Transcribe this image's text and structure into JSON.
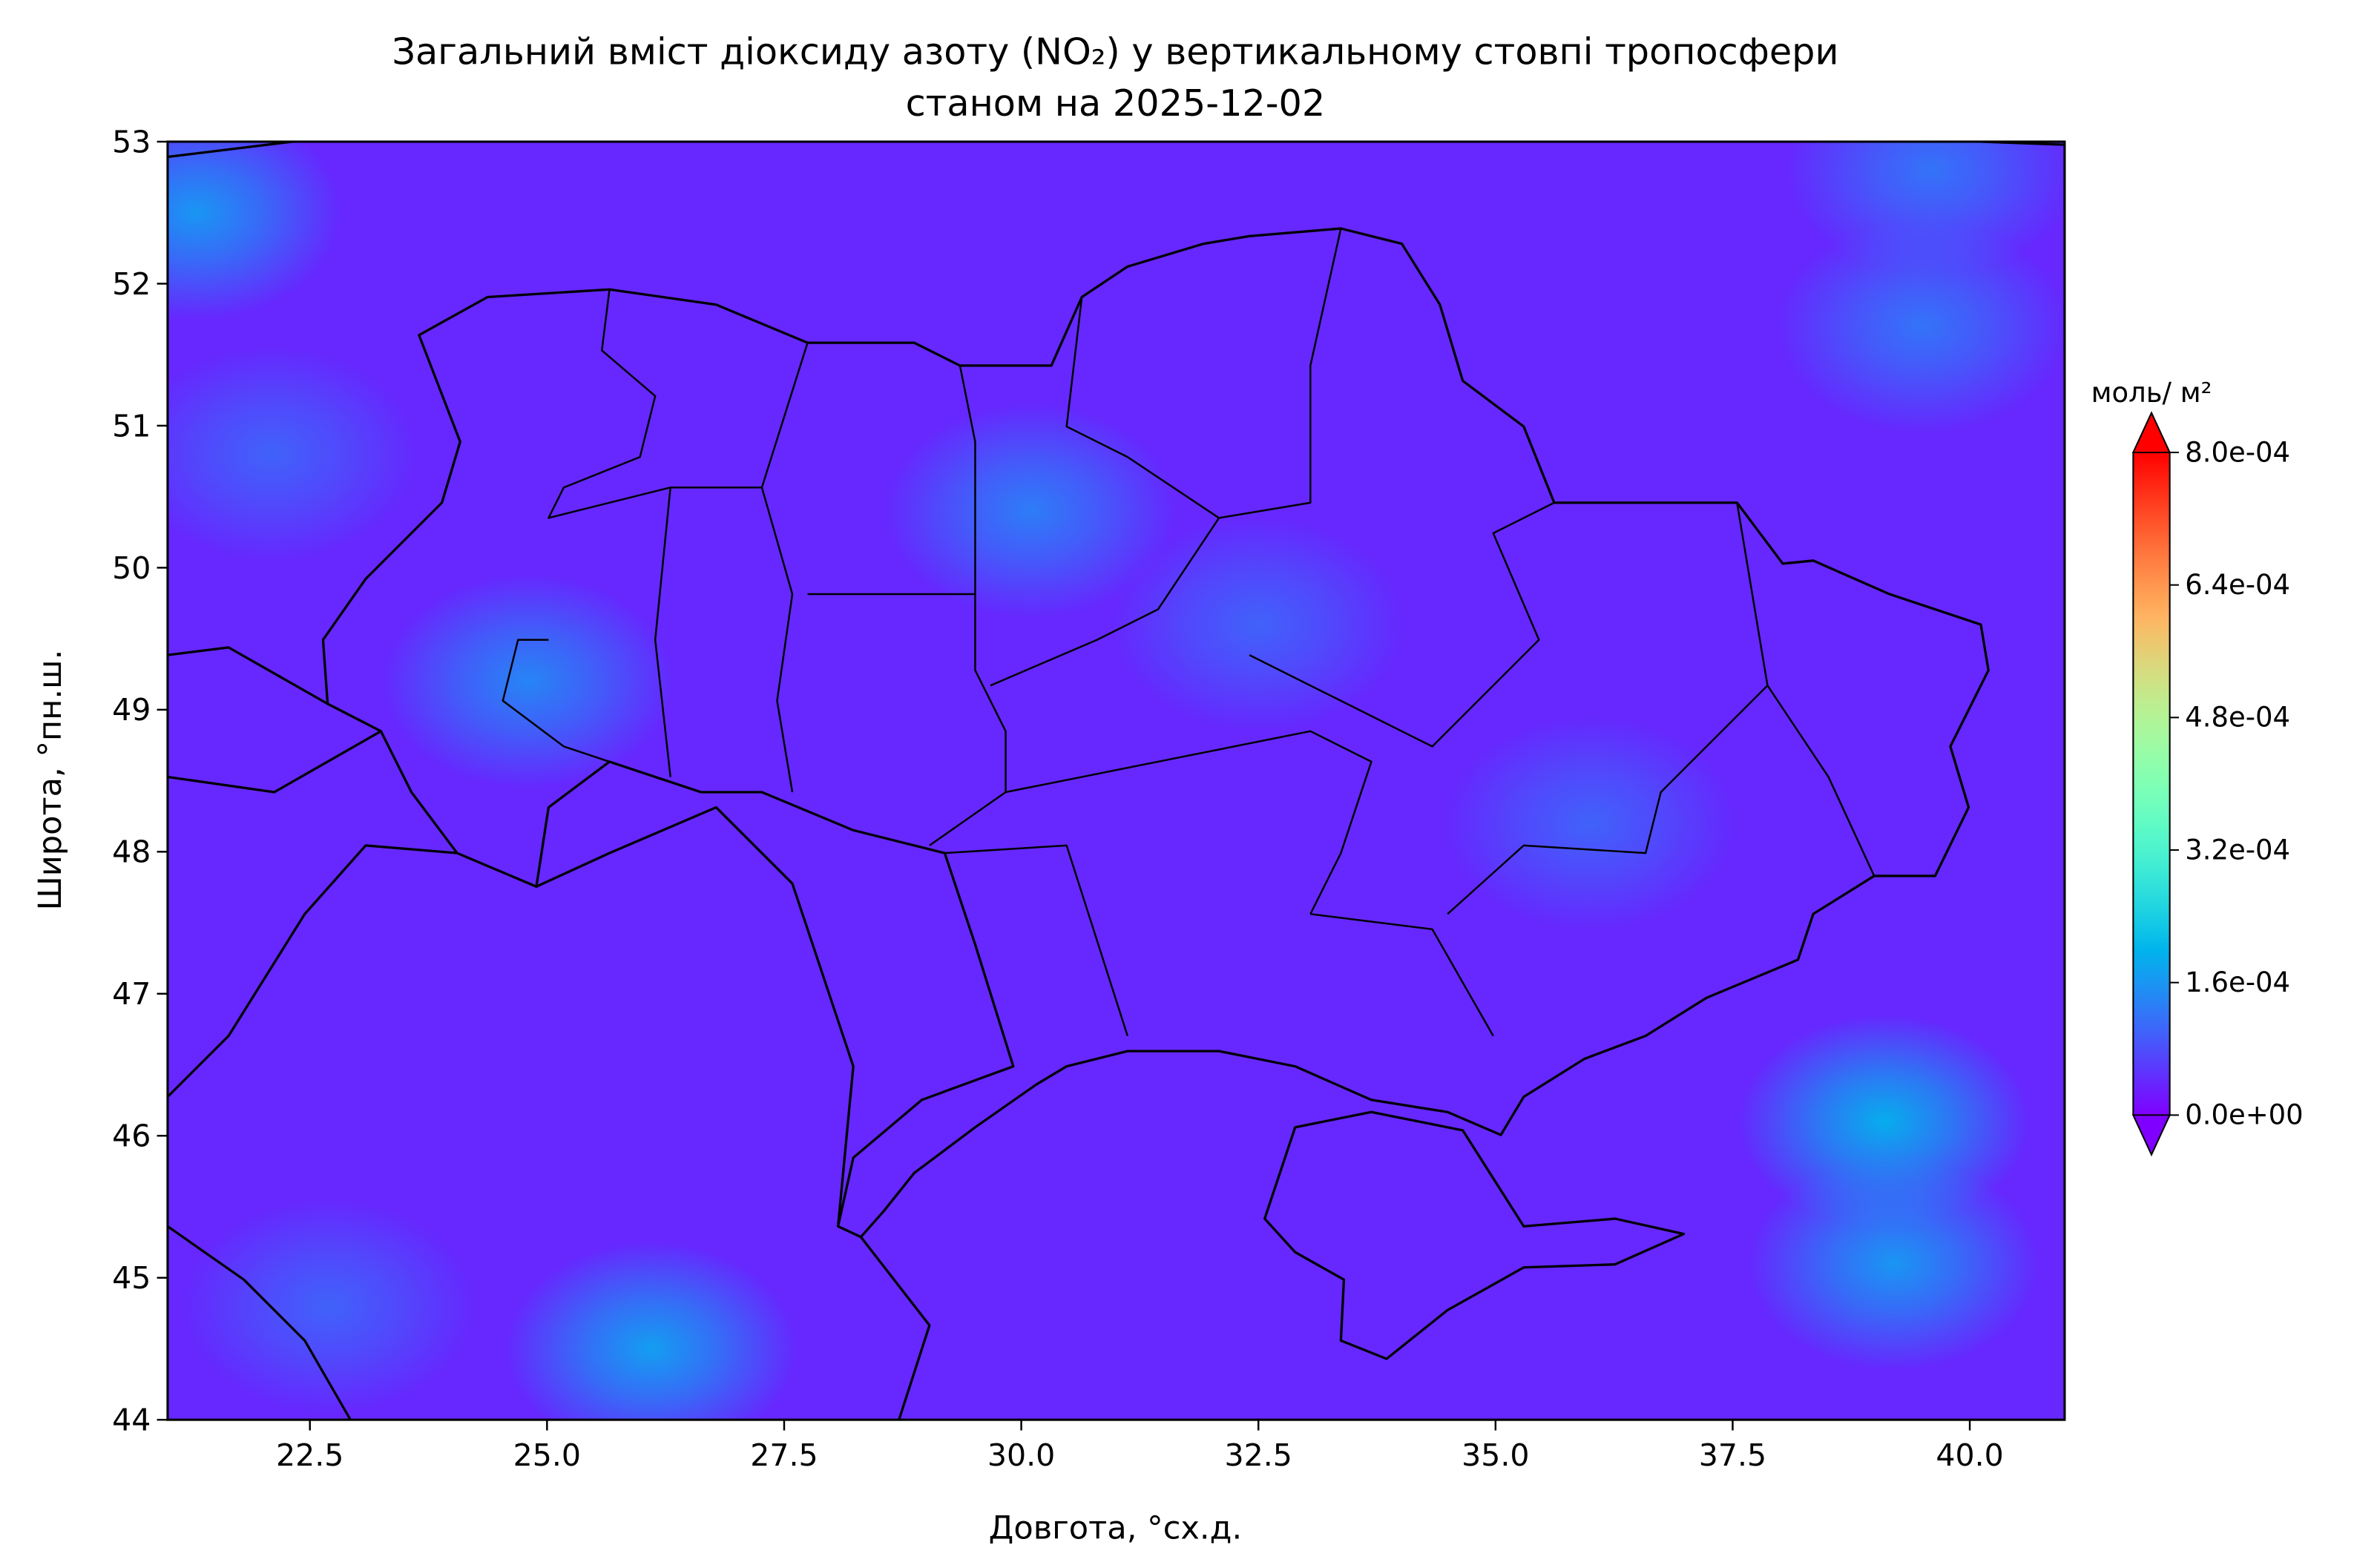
{
  "chart_data": {
    "type": "contour-map",
    "title": [
      "Загальний вміст діоксиду азоту (NO₂) у вертикальному стовпі тропосфери",
      "станом на 2025-12-02"
    ],
    "xlabel": "Довгота, °сх.д.",
    "ylabel": "Широта, °пн.ш.",
    "xlim": [
      21,
      41
    ],
    "ylim": [
      44,
      53
    ],
    "xticks": [
      22.5,
      {
        "value": 25,
        "label": "25.0"
      },
      27.5,
      {
        "value": 30,
        "label": "30.0"
      },
      32.5,
      {
        "value": 35,
        "label": "35.0"
      },
      37.5,
      {
        "value": 40,
        "label": "40.0"
      }
    ],
    "yticks": [
      44,
      45,
      46,
      47,
      48,
      49,
      50,
      51,
      52,
      53
    ],
    "colormap": "rainbow",
    "colorbar_label": "моль/ м²",
    "clim": [
      0,
      0.0008
    ],
    "cticks": [
      {
        "value": 0,
        "label": "0.0e+00"
      },
      {
        "value": 0.00016,
        "label": "1.6e-04"
      },
      {
        "value": 0.00032,
        "label": "3.2e-04"
      },
      {
        "value": 0.00048,
        "label": "4.8e-04"
      },
      {
        "value": 0.00064,
        "label": "6.4e-04"
      },
      {
        "value": 0.0008,
        "label": "8.0e-04"
      }
    ],
    "background_value": 4e-05,
    "hotspots": [
      {
        "lon": 21.3,
        "lat": 52.5,
        "value": 0.00016
      },
      {
        "lon": 24.8,
        "lat": 49.2,
        "value": 0.00014
      },
      {
        "lon": 30.1,
        "lat": 50.4,
        "value": 0.00013
      },
      {
        "lon": 39.1,
        "lat": 46.1,
        "value": 0.00019
      },
      {
        "lon": 39.2,
        "lat": 45.1,
        "value": 0.00016
      },
      {
        "lon": 26.1,
        "lat": 44.5,
        "value": 0.00017
      },
      {
        "lon": 39.6,
        "lat": 52.8,
        "value": 0.00012
      },
      {
        "lon": 39.5,
        "lat": 51.7,
        "value": 0.00012
      },
      {
        "lon": 22.1,
        "lat": 50.8,
        "value": 0.0001
      },
      {
        "lon": 22.7,
        "lat": 44.8,
        "value": 0.0001
      },
      {
        "lon": 36.0,
        "lat": 48.2,
        "value": 0.0001
      },
      {
        "lon": 32.5,
        "lat": 49.6,
        "value": 0.0001
      }
    ]
  }
}
